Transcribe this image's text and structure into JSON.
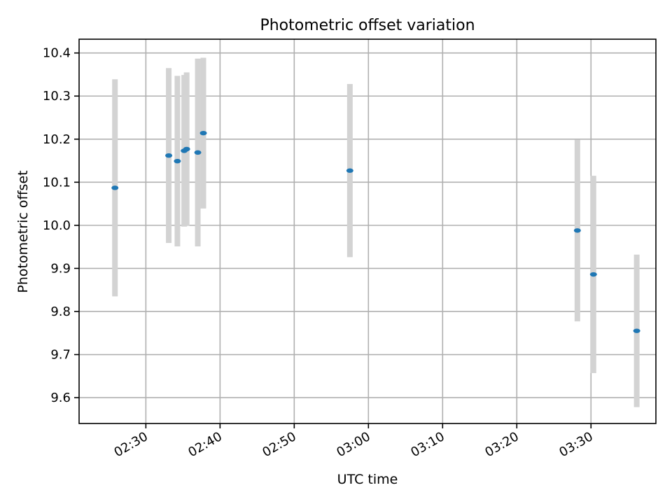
{
  "chart_data": {
    "type": "scatter",
    "title": "Photometric offset variation",
    "xlabel": "UTC time",
    "ylabel": "Photometric offset",
    "grid": true,
    "xlim": [
      "02:21:00",
      "03:38:45"
    ],
    "ylim": [
      9.54,
      10.432
    ],
    "x_ticks": [
      "02:30",
      "02:40",
      "02:50",
      "03:00",
      "03:10",
      "03:20",
      "03:30"
    ],
    "y_ticks": [
      "9.6",
      "9.7",
      "9.8",
      "9.9",
      "10.0",
      "10.1",
      "10.2",
      "10.3",
      "10.4"
    ],
    "y_tick_values": [
      9.6,
      9.7,
      9.8,
      9.9,
      10.0,
      10.1,
      10.2,
      10.3,
      10.4
    ],
    "point_color": "#1f77b4",
    "errorbar_color": "#d3d3d3",
    "series": [
      {
        "points": [
          {
            "x": "02:25:50",
            "y": 10.087,
            "yerr": 0.252
          },
          {
            "x": "02:33:05",
            "y": 10.162,
            "yerr": 0.203
          },
          {
            "x": "02:34:15",
            "y": 10.149,
            "yerr": 0.198
          },
          {
            "x": "02:35:10",
            "y": 10.173,
            "yerr": 0.176
          },
          {
            "x": "02:35:30",
            "y": 10.177,
            "yerr": 0.178
          },
          {
            "x": "02:37:00",
            "y": 10.169,
            "yerr": 0.218
          },
          {
            "x": "02:37:45",
            "y": 10.214,
            "yerr": 0.175
          },
          {
            "x": "02:57:30",
            "y": 10.127,
            "yerr": 0.201
          },
          {
            "x": "03:28:10",
            "y": 9.988,
            "yerr": 0.211
          },
          {
            "x": "03:30:20",
            "y": 9.886,
            "yerr": 0.229
          },
          {
            "x": "03:36:10",
            "y": 9.755,
            "yerr": 0.177
          }
        ]
      }
    ]
  }
}
